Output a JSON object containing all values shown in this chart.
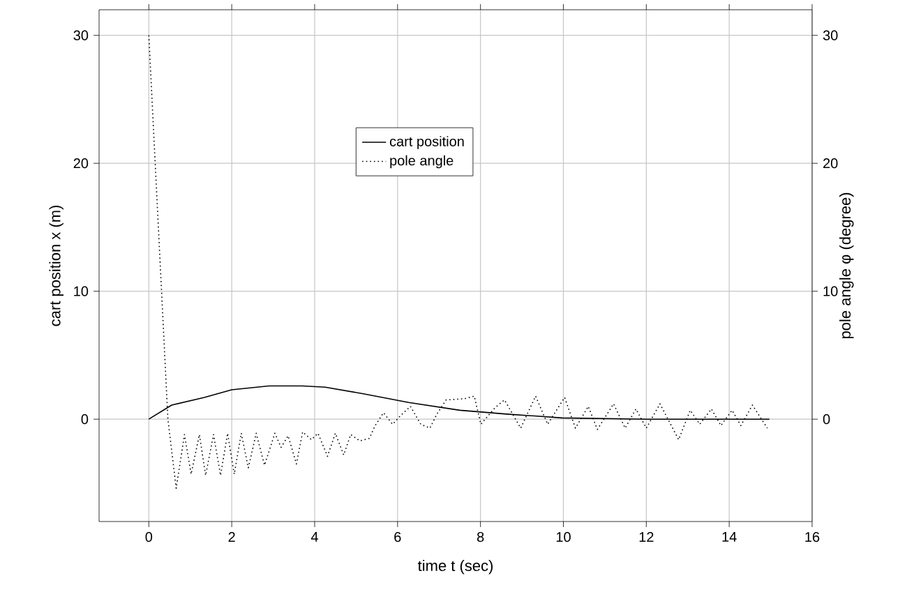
{
  "chart_data": {
    "type": "line",
    "xlabel": "time t (sec)",
    "ylabel": "cart position x (m)",
    "y2label": "pole angle φ (degree)",
    "xlim": [
      -1.2,
      16
    ],
    "xticks": [
      0,
      2,
      4,
      6,
      8,
      10,
      12,
      14,
      16
    ],
    "ylim": [
      -8,
      32
    ],
    "yticks": [
      0,
      10,
      20,
      30
    ],
    "y2lim": [
      -8,
      32
    ],
    "y2ticks": [
      0,
      10,
      20,
      30
    ],
    "grid": true,
    "legend": "top",
    "marker": "none",
    "series": [
      {
        "name": "cart position",
        "color": "#000000",
        "line_style": "solid",
        "x": [
          0,
          0.55,
          1.34,
          2.0,
          2.9,
          3.7,
          4.25,
          5.15,
          6.27,
          7.5,
          8.63,
          9.97,
          12,
          14.97
        ],
        "values": [
          0,
          1.1,
          1.7,
          2.3,
          2.6,
          2.6,
          2.5,
          2.0,
          1.3,
          0.7,
          0.4,
          0.1,
          0,
          0
        ]
      },
      {
        "name": "pole angle",
        "color": "#000000",
        "line_style": "dotted",
        "axis": "y2",
        "x": [
          0,
          0.46,
          0.66,
          0.86,
          1.02,
          1.22,
          1.37,
          1.56,
          1.73,
          1.9,
          2.06,
          2.23,
          2.4,
          2.59,
          2.79,
          3.04,
          3.19,
          3.36,
          3.56,
          3.71,
          3.92,
          4.08,
          4.31,
          4.5,
          4.7,
          4.87,
          5.09,
          5.32,
          5.46,
          5.66,
          5.88,
          6.05,
          6.31,
          6.56,
          6.78,
          6.95,
          7.17,
          7.62,
          7.85,
          8.01,
          8.35,
          8.58,
          8.97,
          9.33,
          9.62,
          10.03,
          10.29,
          10.6,
          10.82,
          11.21,
          11.49,
          11.75,
          12.0,
          12.33,
          12.78,
          13.06,
          13.29,
          13.57,
          13.8,
          14.07,
          14.28,
          14.56,
          14.92
        ],
        "values": [
          30,
          0,
          -5.4,
          -1.2,
          -4.3,
          -1.2,
          -4.4,
          -1.2,
          -4.4,
          -1.1,
          -4.3,
          -1.1,
          -3.8,
          -1.1,
          -3.6,
          -1.1,
          -2.2,
          -1.3,
          -3.5,
          -1.0,
          -1.6,
          -1.1,
          -2.9,
          -1.1,
          -2.8,
          -1.2,
          -1.7,
          -1.5,
          -0.5,
          0.5,
          -0.4,
          0.2,
          1.0,
          -0.4,
          -0.7,
          0.4,
          1.5,
          1.6,
          1.8,
          -0.4,
          0.9,
          1.5,
          -0.7,
          1.8,
          -0.4,
          1.7,
          -0.7,
          1.0,
          -0.8,
          1.2,
          -0.7,
          0.8,
          -0.7,
          1.2,
          -1.6,
          0.7,
          -0.4,
          0.8,
          -0.5,
          0.7,
          -0.5,
          1.1,
          -0.7
        ]
      }
    ]
  }
}
